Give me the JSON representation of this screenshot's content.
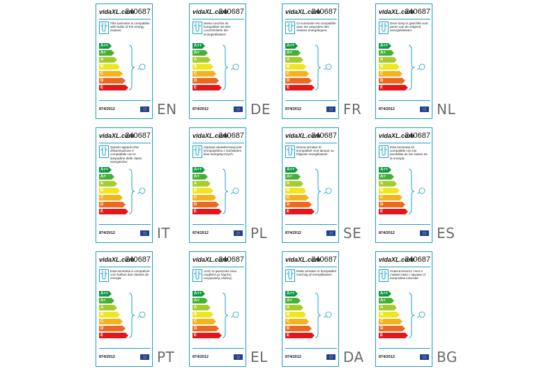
{
  "product_code": "240687",
  "brand": "vidaXL.com",
  "regulation": "874/2012",
  "energy_classes": [
    {
      "label": "A++",
      "color": "#0a9a3c"
    },
    {
      "label": "A+",
      "color": "#46b035"
    },
    {
      "label": "A",
      "color": "#a6cc2b"
    },
    {
      "label": "B",
      "color": "#f0e51e"
    },
    {
      "label": "C",
      "color": "#f6b21a"
    },
    {
      "label": "D",
      "color": "#ec6a1f"
    },
    {
      "label": "E",
      "color": "#e2161b"
    }
  ],
  "labels": [
    {
      "lang": "EN",
      "text": "This luminaire is compatible with bulbs of the energy classes:"
    },
    {
      "lang": "DE",
      "text": "Diese Leuchte ist kompatibel mit den Leuchtmitteln der Energieklassen:"
    },
    {
      "lang": "FR",
      "text": "Ce luminaire est compatible avec les ampoules des classes énergétiques:"
    },
    {
      "lang": "NL",
      "text": "Deze lamp is geschikt voor peren van de volgend energieklassen:"
    },
    {
      "lang": "IT",
      "text": "Questo apparecchio d'illuminazione è compatibile con le lampadine delle classi energetiche:"
    },
    {
      "lang": "PL",
      "text": "Oprawa oświetleniowa jest kompatybilna z żarówkami klas energetycznych:"
    },
    {
      "lang": "SE",
      "text": "Denna armatur är kompatibel med lampor av följande energiklasser:"
    },
    {
      "lang": "ES",
      "text": "Esta luminaria es compatible con las bombillas de las clases de la energía:"
    },
    {
      "lang": "PT",
      "text": "Esta luminária é compatível com bulbos das classes de energia:"
    },
    {
      "lang": "EL",
      "text": "Αυτό το φωτιστικό είναι συμβατό με λάμπες ενεργειακής κλάσης:"
    },
    {
      "lang": "DA",
      "text": "Dette armatur er kompatibel med løg af energiklasser:"
    },
    {
      "lang": "BG",
      "text": "Осветителното тяло е съвместимо с крушки от енергийни класове:"
    }
  ]
}
